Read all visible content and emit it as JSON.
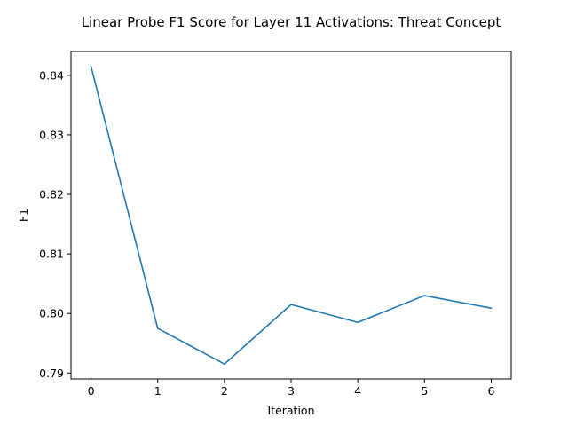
{
  "chart_data": {
    "type": "line",
    "title": "Linear Probe F1 Score for Layer 11 Activations: Threat Concept",
    "xlabel": "Iteration",
    "ylabel": "F1",
    "x": [
      0,
      1,
      2,
      3,
      4,
      5,
      6
    ],
    "series": [
      {
        "values": [
          0.8415,
          0.7975,
          0.7915,
          0.8015,
          0.7985,
          0.803,
          0.8009
        ],
        "color": "#1f77b4"
      }
    ],
    "xticks": [
      "0",
      "1",
      "2",
      "3",
      "4",
      "5",
      "6"
    ],
    "yticks": [
      "0.79",
      "0.80",
      "0.81",
      "0.82",
      "0.83",
      "0.84"
    ],
    "xlim": [
      -0.3,
      6.3
    ],
    "ylim": [
      0.789,
      0.844
    ],
    "grid": false,
    "legend": false
  }
}
